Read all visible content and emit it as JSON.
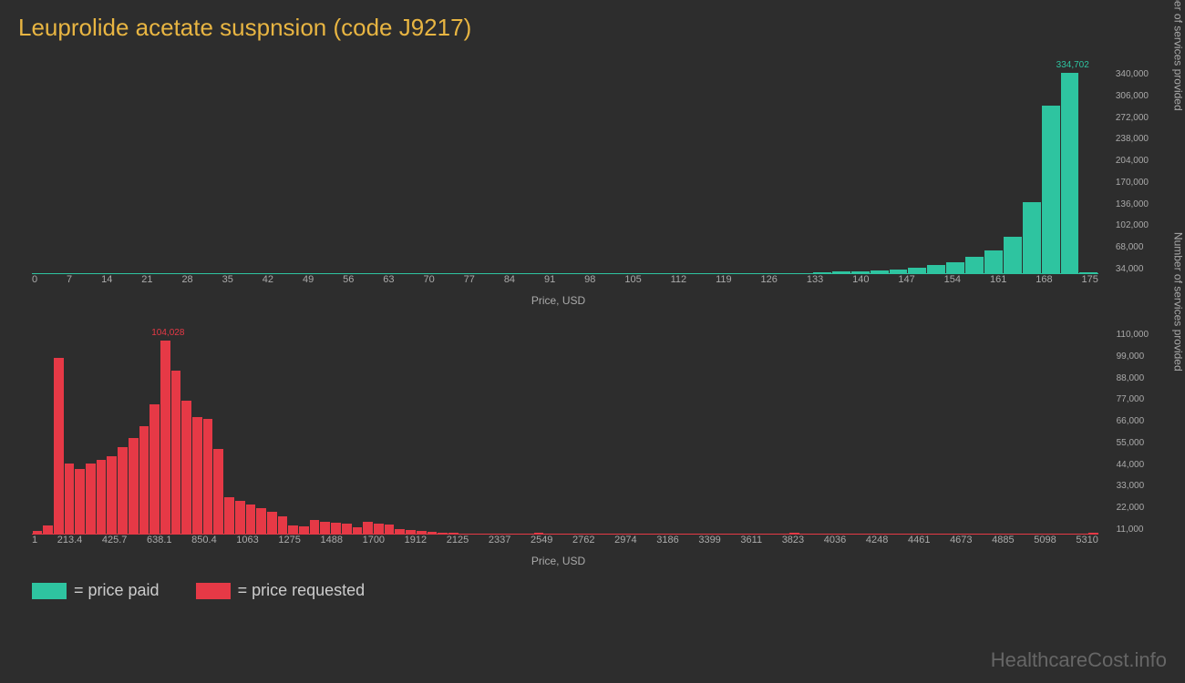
{
  "title": "Leuprolide acetate suspnsion (code J9217)",
  "colors": {
    "background": "#2d2d2d",
    "title": "#e8b542",
    "axis_text": "#aaaaaa",
    "paid": "#2ec4a0",
    "requested": "#e63946",
    "watermark": "#666666"
  },
  "chart1": {
    "type": "bar",
    "bar_color": "#2ec4a0",
    "x_label": "Price, USD",
    "y_label": "Number of services provided",
    "peak_label": "334,702",
    "x_ticks": [
      "0",
      "7",
      "14",
      "21",
      "28",
      "35",
      "42",
      "49",
      "56",
      "63",
      "70",
      "77",
      "84",
      "91",
      "98",
      "105",
      "112",
      "119",
      "126",
      "133",
      "140",
      "147",
      "154",
      "161",
      "168",
      "175"
    ],
    "y_ticks": [
      "34,000",
      "68,000",
      "102,000",
      "136,000",
      "170,000",
      "204,000",
      "238,000",
      "272,000",
      "306,000",
      "340,000"
    ],
    "ylim": [
      0,
      340000
    ],
    "values": [
      2000,
      1000,
      500,
      500,
      300,
      300,
      200,
      200,
      200,
      200,
      200,
      200,
      200,
      200,
      200,
      200,
      200,
      200,
      200,
      200,
      200,
      200,
      200,
      200,
      200,
      200,
      200,
      200,
      200,
      200,
      1500,
      200,
      200,
      200,
      1200,
      200,
      1500,
      200,
      1800,
      200,
      200,
      3000,
      4000,
      5000,
      6500,
      8000,
      11000,
      15000,
      20000,
      28000,
      40000,
      62000,
      120000,
      280000,
      334702,
      3000
    ]
  },
  "chart2": {
    "type": "bar",
    "bar_color": "#e63946",
    "x_label": "Price, USD",
    "y_label": "Number of services provided",
    "peak_label": "104,028",
    "x_ticks": [
      "1",
      "213.4",
      "425.7",
      "638.1",
      "850.4",
      "1063",
      "1275",
      "1488",
      "1700",
      "1912",
      "2125",
      "2337",
      "2549",
      "2762",
      "2974",
      "3186",
      "3399",
      "3611",
      "3823",
      "4036",
      "4248",
      "4461",
      "4673",
      "4885",
      "5098",
      "5310"
    ],
    "y_ticks": [
      "11,000",
      "22,000",
      "33,000",
      "44,000",
      "55,000",
      "66,000",
      "77,000",
      "88,000",
      "99,000",
      "110,000"
    ],
    "ylim": [
      0,
      110000
    ],
    "values": [
      2000,
      5000,
      95000,
      38000,
      35000,
      38000,
      40000,
      42000,
      47000,
      52000,
      58000,
      70000,
      104028,
      88000,
      72000,
      63000,
      62000,
      46000,
      20000,
      18000,
      16000,
      14000,
      12000,
      10000,
      5000,
      4500,
      8000,
      7000,
      6500,
      6000,
      4000,
      7000,
      6000,
      5500,
      3000,
      2500,
      2000,
      1500,
      1000,
      800,
      600,
      500,
      400,
      300,
      200,
      200,
      200,
      800,
      200,
      200,
      200,
      200,
      200,
      200,
      200,
      200,
      200,
      200,
      200,
      200,
      200,
      200,
      200,
      200,
      200,
      200,
      200,
      200,
      200,
      200,
      200,
      800,
      200,
      200,
      200,
      200,
      200,
      200,
      200,
      200,
      200,
      200,
      200,
      200,
      200,
      200,
      200,
      200,
      200,
      200,
      200,
      200,
      200,
      200,
      200,
      200,
      200,
      200,
      200,
      800
    ]
  },
  "legend": {
    "paid": "= price paid",
    "requested": "= price requested"
  },
  "watermark": "HealthcareCost.info"
}
